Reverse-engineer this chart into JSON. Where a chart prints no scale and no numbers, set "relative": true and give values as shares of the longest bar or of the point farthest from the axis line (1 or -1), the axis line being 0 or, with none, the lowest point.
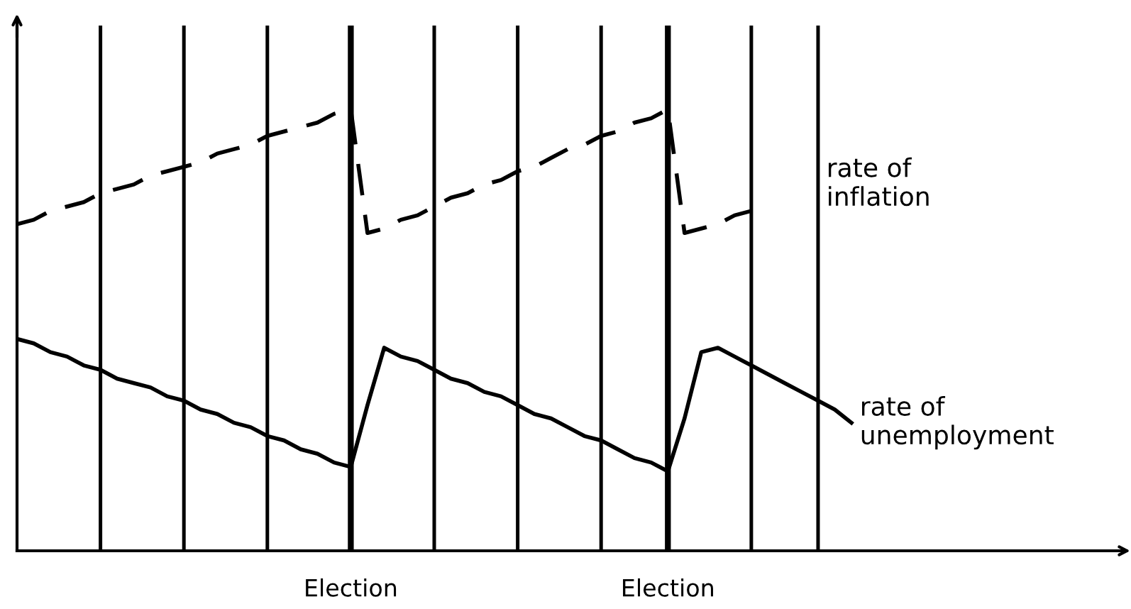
{
  "chart_data": {
    "type": "line",
    "relative": true,
    "tick_labels": false,
    "categories": [
      null,
      null,
      null,
      null,
      null,
      null,
      null,
      null,
      null,
      null,
      null,
      null,
      null,
      null,
      null,
      null,
      null,
      null,
      null,
      null,
      null,
      null,
      null,
      null,
      null,
      null,
      null,
      null,
      null,
      null,
      null,
      null,
      null,
      null,
      null,
      null,
      null,
      null,
      null,
      null,
      null,
      null,
      null,
      null,
      null,
      null,
      null,
      null,
      null,
      null,
      null
    ],
    "series": [
      {
        "name": "rate of\ninflation",
        "color": "#000000",
        "line_style": "dashed",
        "values": [
          0.74,
          0.75,
          0.77,
          0.78,
          0.79,
          0.81,
          0.82,
          0.83,
          0.85,
          0.86,
          0.87,
          0.88,
          0.9,
          0.91,
          0.92,
          0.94,
          0.95,
          0.96,
          0.97,
          0.99,
          1.0,
          0.72,
          0.73,
          0.75,
          0.76,
          0.78,
          0.8,
          0.81,
          0.83,
          0.84,
          0.86,
          0.87,
          0.89,
          0.91,
          0.92,
          0.94,
          0.95,
          0.97,
          0.98,
          1.0,
          0.72,
          0.73,
          0.74,
          0.76,
          0.77,
          null,
          null,
          null,
          null,
          null,
          null
        ]
      },
      {
        "name": "rate of\nunemployment",
        "color": "#000000",
        "line_style": "solid",
        "values": [
          0.48,
          0.47,
          0.45,
          0.44,
          0.42,
          0.41,
          0.39,
          0.38,
          0.37,
          0.35,
          0.34,
          0.32,
          0.31,
          0.29,
          0.28,
          0.26,
          0.25,
          0.23,
          0.22,
          0.2,
          0.19,
          0.33,
          0.46,
          0.44,
          0.43,
          0.41,
          0.39,
          0.38,
          0.36,
          0.35,
          0.33,
          0.31,
          0.3,
          0.28,
          0.26,
          0.25,
          0.23,
          0.21,
          0.2,
          0.18,
          0.3,
          0.45,
          0.46,
          0.44,
          0.42,
          0.4,
          0.38,
          0.36,
          0.34,
          0.32,
          0.29
        ]
      }
    ],
    "grid": "x",
    "annotations": [
      "Election",
      "Election"
    ]
  }
}
